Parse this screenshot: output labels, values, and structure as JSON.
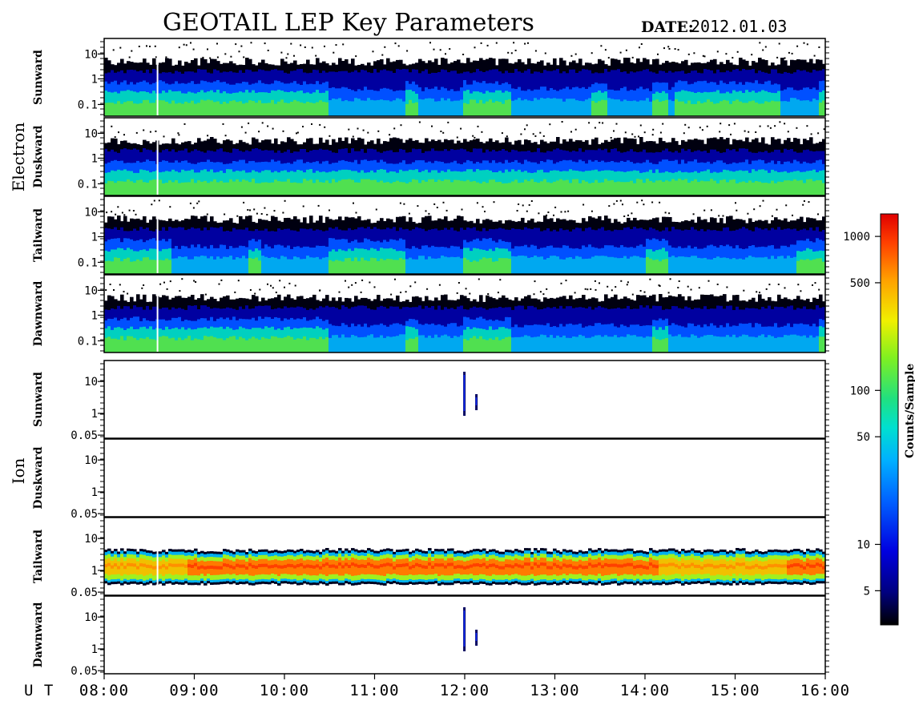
{
  "title": "GEOTAIL LEP Key Parameters",
  "date_label": "DATE:",
  "date_value": "2012.01.03",
  "chart_data": {
    "type": "heatmap",
    "x_axis_label": "U T",
    "x_ticks": [
      "08:00",
      "09:00",
      "10:00",
      "11:00",
      "12:00",
      "13:00",
      "14:00",
      "15:00",
      "16:00"
    ],
    "xlim": [
      "08:00",
      "16:00"
    ],
    "colorbar": {
      "label": "Counts/Sample",
      "scale": "log",
      "range": [
        3,
        1400
      ],
      "ticks": [
        5,
        10,
        50,
        100,
        500,
        1000
      ],
      "tick_labels": [
        "5",
        "10",
        "50",
        "100",
        "500",
        "1000"
      ],
      "colors": [
        "#000000",
        "#0000a0",
        "#0030ff",
        "#0090ff",
        "#00e0e0",
        "#20e080",
        "#80f020",
        "#f0f000",
        "#ffa000",
        "#ff4000",
        "#e00000"
      ]
    },
    "groups": [
      {
        "name": "Electron",
        "y_scale": "log",
        "y_ticks": [
          0.1,
          1,
          10
        ],
        "y_tick_labels": [
          "0.1",
          "1",
          "10"
        ],
        "panels": [
          {
            "label": "Sunward",
            "data_gap_at": [
              "08:35"
            ],
            "enhanced_intervals": [
              [
                "08:00",
                "10:30"
              ],
              [
                "11:20",
                "11:30"
              ],
              [
                "12:00",
                "12:30"
              ],
              [
                "13:25",
                "13:35"
              ],
              [
                "14:05",
                "14:15"
              ],
              [
                "14:20",
                "15:30"
              ],
              [
                "15:55",
                "16:00"
              ]
            ]
          },
          {
            "label": "Duskward",
            "data_gap_at": [
              "08:35"
            ],
            "enhanced_intervals": [
              [
                "08:00",
                "16:00"
              ],
              [
                "13:20",
                "14:00"
              ],
              [
                "14:30",
                "15:50"
              ]
            ]
          },
          {
            "label": "Tailward",
            "data_gap_at": [
              "08:35"
            ],
            "enhanced_intervals": [
              [
                "08:00",
                "08:45"
              ],
              [
                "09:35",
                "09:45"
              ],
              [
                "10:30",
                "11:20"
              ],
              [
                "12:00",
                "12:30"
              ],
              [
                "14:00",
                "14:15"
              ],
              [
                "15:40",
                "16:00"
              ]
            ]
          },
          {
            "label": "Dawnward",
            "data_gap_at": [
              "08:35"
            ],
            "enhanced_intervals": [
              [
                "08:00",
                "10:30"
              ],
              [
                "11:20",
                "11:30"
              ],
              [
                "12:00",
                "12:30"
              ],
              [
                "14:05",
                "14:15"
              ],
              [
                "15:55",
                "16:00"
              ]
            ]
          }
        ]
      },
      {
        "name": "Ion",
        "y_scale": "log",
        "y_ticks": [
          0.05,
          1,
          10
        ],
        "y_tick_labels": [
          "0.05",
          "1",
          "10"
        ],
        "panels": [
          {
            "label": "Sunward",
            "burst_times": [
              "11:59",
              "12:07"
            ]
          },
          {
            "label": "Duskward",
            "burst_times": []
          },
          {
            "label": "Tailward",
            "data_gap_at": [
              "08:35"
            ],
            "strong_band": [
              [
                "08:00",
                "16:00"
              ]
            ],
            "enhanced_intervals": [
              [
                "08:55",
                "14:10"
              ],
              [
                "15:35",
                "16:00"
              ]
            ]
          },
          {
            "label": "Dawnward",
            "burst_times": [
              "11:59",
              "12:07"
            ]
          }
        ]
      }
    ]
  }
}
